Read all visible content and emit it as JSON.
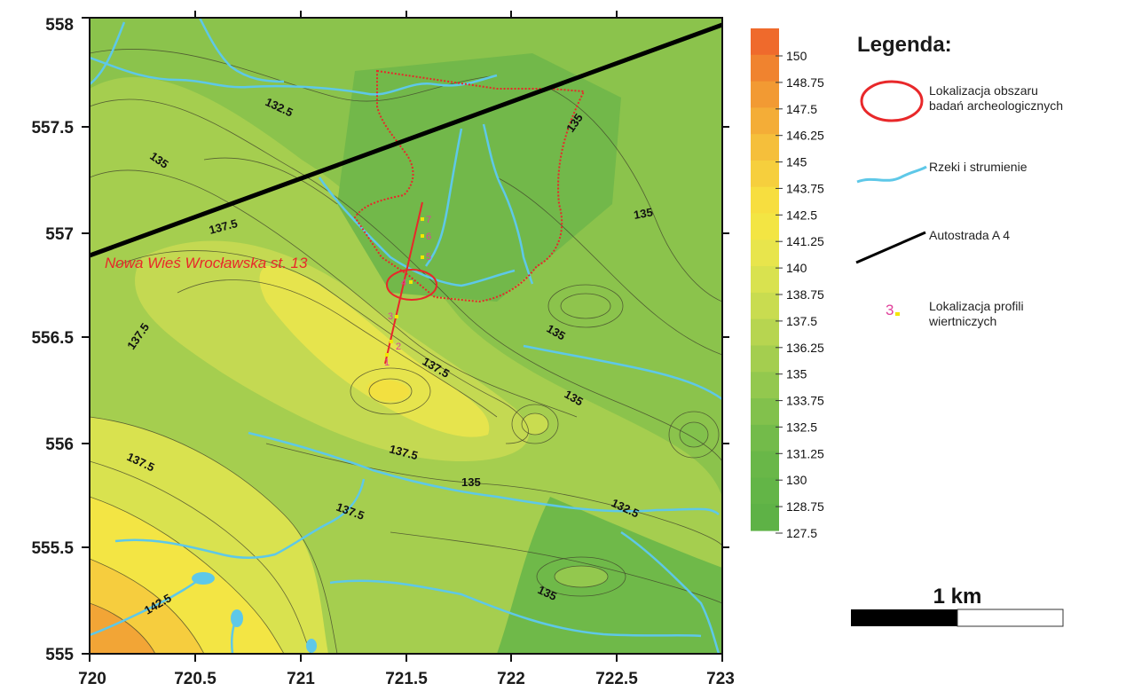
{
  "map": {
    "x_ticks": [
      "720",
      "720.5",
      "721",
      "721.5",
      "722",
      "722.5",
      "723"
    ],
    "y_ticks": [
      "558",
      "557.5",
      "557",
      "556.5",
      "556",
      "555.5",
      "555"
    ],
    "site_name": "Nowa Wieś Wrocławska st. 13",
    "contour_labels": [
      "132.5",
      "135",
      "135",
      "135",
      "137.5",
      "137.5",
      "137.5",
      "137.5",
      "137.5",
      "135",
      "137.5",
      "135",
      "135",
      "132.5",
      "142.5",
      "135"
    ],
    "borehole_labels": [
      "1",
      "2",
      "3",
      "4",
      "5",
      "6",
      "7"
    ],
    "colors": {
      "river": "#5ec8e8",
      "highway": "#000000",
      "area_outline": "#e8282a",
      "borehole_label": "#e0409a",
      "borehole_marker": "#f2e600",
      "site_label": "#e8282a"
    }
  },
  "color_scale": {
    "ticks": [
      "150",
      "148.75",
      "147.5",
      "146.25",
      "145",
      "143.75",
      "142.5",
      "141.25",
      "140",
      "138.75",
      "137.5",
      "136.25",
      "135",
      "133.75",
      "132.5",
      "131.25",
      "130",
      "128.75",
      "127.5"
    ],
    "colors": [
      "#ef6a2c",
      "#f0832f",
      "#f29a33",
      "#f4ad37",
      "#f5bf3b",
      "#f6cf3d",
      "#f7de3f",
      "#f3e543",
      "#e8e54c",
      "#d9e24f",
      "#c9dc50",
      "#b7d550",
      "#a4ce4f",
      "#93c84e",
      "#82c14c",
      "#73bb4a",
      "#69b748",
      "#63b547",
      "#5eb246"
    ]
  },
  "legend": {
    "title": "Legenda:",
    "area_line1": "Lokalizacja obszaru",
    "area_line2": "badań archeologicznych",
    "rivers": "Rzeki i strumienie",
    "highway": "Autostrada A 4",
    "boreholes_line1": "Lokalizacja profili",
    "boreholes_line2": "wiertniczych",
    "borehole_sample": "3"
  },
  "scale_bar": {
    "label": "1 km"
  }
}
